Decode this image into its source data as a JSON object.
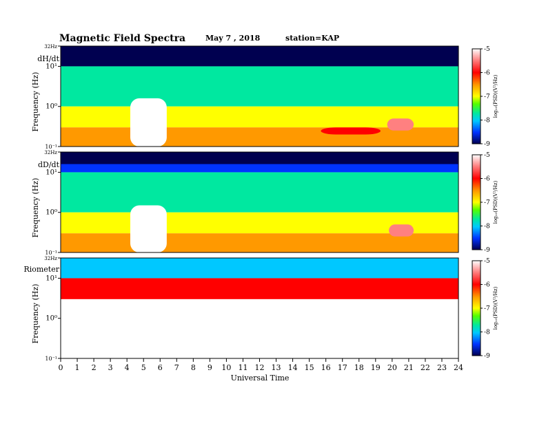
{
  "chart_data": {
    "type": "heatmap",
    "title": "Magnetic  Field  Spectra",
    "date": "May 7  , 2018",
    "station": "station=KAP",
    "xlabel": "Universal Time",
    "x_ticks": [
      "0",
      "1",
      "2",
      "3",
      "4",
      "5",
      "6",
      "7",
      "8",
      "9",
      "10",
      "11",
      "12",
      "13",
      "14",
      "15",
      "16",
      "17",
      "18",
      "19",
      "20",
      "21",
      "22",
      "23",
      "24"
    ],
    "xlim": [
      0,
      24
    ],
    "y_scale": "log",
    "colorbar": {
      "label": "log₁₀(PSD)(V²/Hz)",
      "ticks": [
        "-5",
        "-6",
        "-7",
        "-8",
        "-9"
      ],
      "range": [
        -9,
        -5
      ]
    },
    "panels": [
      {
        "name": "dH/dt",
        "ylabel": "Frequency  (Hz)",
        "y_ticks": {
          "top": "32Hz",
          "upper": "10¹",
          "mid": "10⁰",
          "low": "10⁻¹"
        },
        "ylim": [
          0.1,
          32
        ],
        "background_log_psd": {
          "above_10Hz": -8.7,
          "1_to_10Hz": -7.6,
          "0.3_to_1Hz": -6.8,
          "below_0.3Hz": -6.3
        },
        "features": [
          {
            "kind": "broadband enhancement",
            "t_start": 4.2,
            "t_end": 6.4,
            "f_top": 1.6,
            "log_psd": -5
          },
          {
            "kind": "Pc1 band",
            "t_start": 19.7,
            "t_end": 21.3,
            "f_low": 0.25,
            "f_high": 0.5,
            "log_psd": -5.2
          },
          {
            "kind": "Pc1 band",
            "t_start": 15.7,
            "t_end": 19.3,
            "f_low": 0.2,
            "f_high": 0.3,
            "log_psd": -5.8
          }
        ]
      },
      {
        "name": "dD/dt",
        "ylabel": "Frequency  (Hz)",
        "y_ticks": {
          "top": "32Hz",
          "upper": "10¹",
          "mid": "10⁰",
          "low": "10⁻¹"
        },
        "ylim": [
          0.1,
          32
        ],
        "background_log_psd": {
          "above_10Hz": -8.4,
          "1_to_10Hz": -7.5,
          "0.3_to_1Hz": -6.8,
          "below_0.3Hz": -6.3
        },
        "features": [
          {
            "kind": "broadband enhancement",
            "t_start": 4.2,
            "t_end": 6.4,
            "f_top": 1.5,
            "log_psd": -5
          },
          {
            "kind": "Pc1 band",
            "t_start": 19.8,
            "t_end": 21.3,
            "f_low": 0.25,
            "f_high": 0.5,
            "log_psd": -5.3
          }
        ]
      },
      {
        "name": "Riometer",
        "ylabel": "Frequency  (Hz)",
        "y_ticks": {
          "top": "32Hz",
          "upper": "10¹",
          "mid": "10⁰",
          "low": "10⁻¹"
        },
        "ylim": [
          0.1,
          32
        ],
        "background_log_psd": {
          "above_10Hz": -7.8,
          "3_to_10Hz": -6.0,
          "below_3Hz": -5.0
        },
        "features": []
      }
    ]
  }
}
